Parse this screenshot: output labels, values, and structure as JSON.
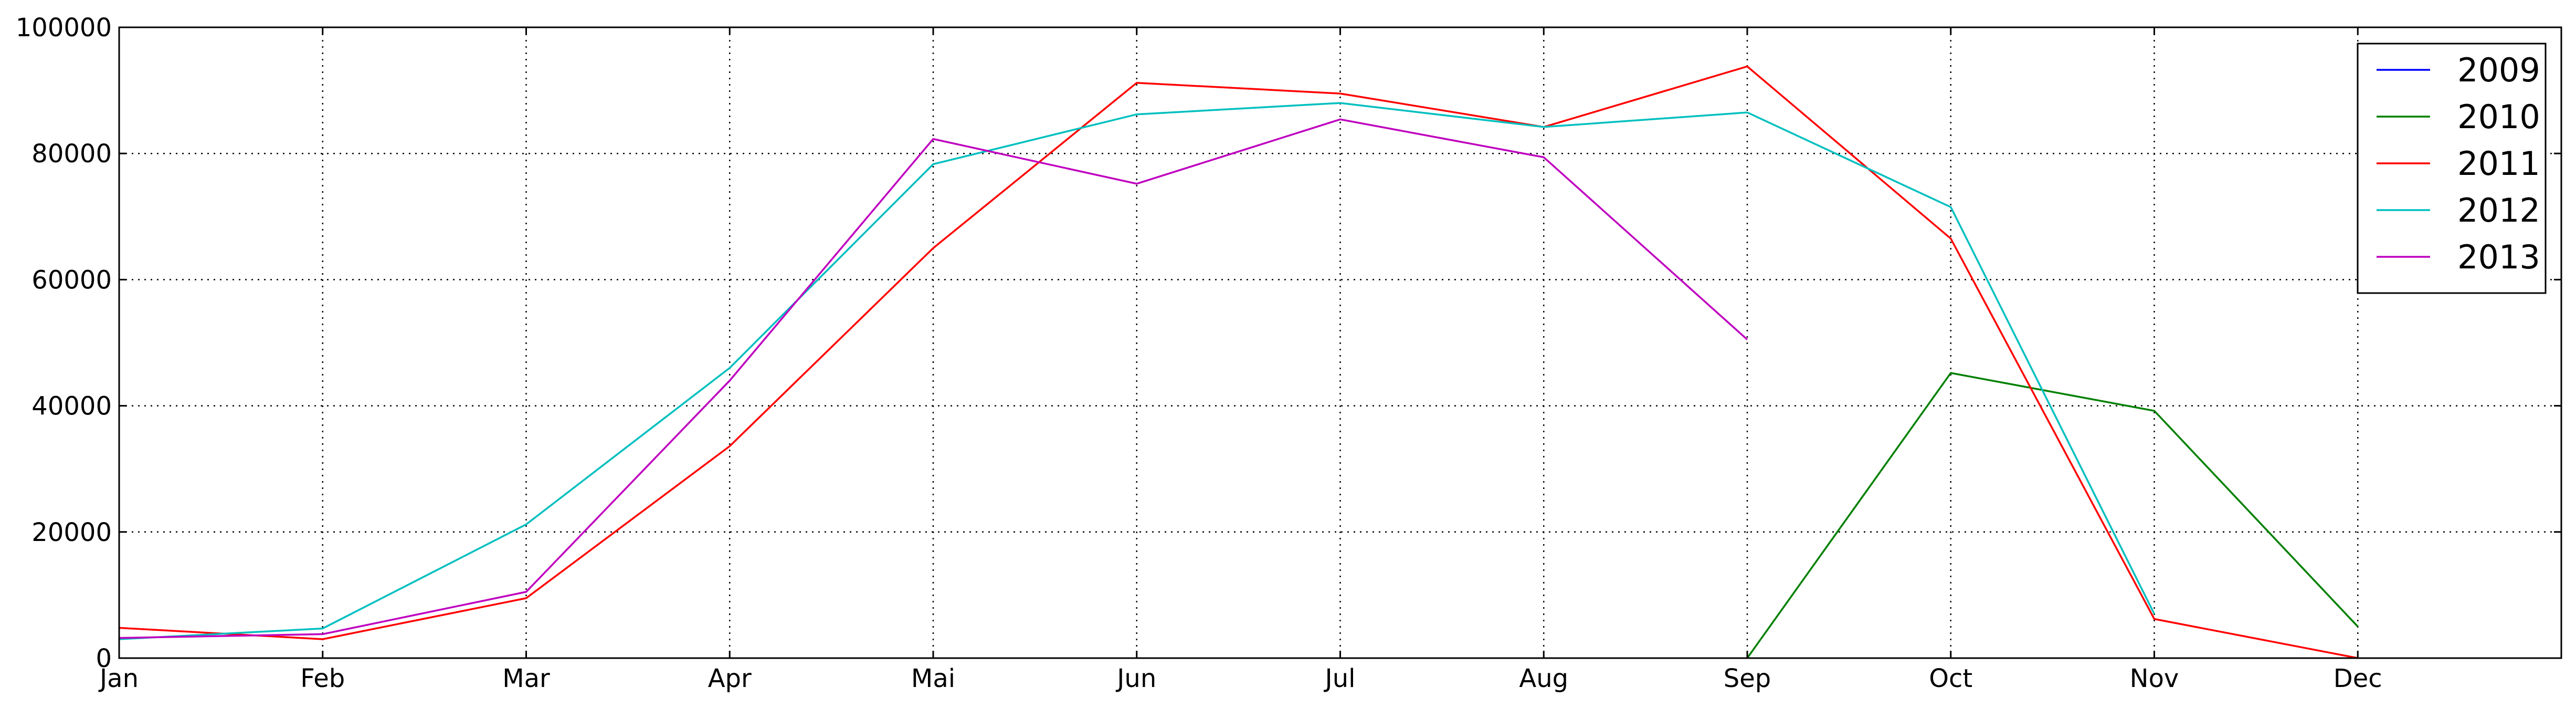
{
  "chart_data": {
    "type": "line",
    "title": "",
    "xlabel": "",
    "ylabel": "",
    "categories": [
      "Jan",
      "Feb",
      "Mar",
      "Apr",
      "Mai",
      "Jun",
      "Jul",
      "Aug",
      "Sep",
      "Oct",
      "Nov",
      "Dec"
    ],
    "xlim": [
      0,
      12
    ],
    "ylim": [
      0,
      100000
    ],
    "yticks": [
      0,
      20000,
      40000,
      60000,
      80000,
      100000
    ],
    "grid": true,
    "legend_position": "top-right",
    "series": [
      {
        "name": "2009",
        "color": "#0000ff",
        "values": [
          null,
          null,
          null,
          null,
          null,
          null,
          null,
          null,
          null,
          null,
          null,
          null
        ]
      },
      {
        "name": "2010",
        "color": "#008000",
        "values": [
          null,
          null,
          null,
          null,
          null,
          null,
          null,
          null,
          0,
          45200,
          39200,
          5000
        ]
      },
      {
        "name": "2011",
        "color": "#ff0000",
        "values": [
          4800,
          3000,
          9500,
          33600,
          65000,
          91200,
          89500,
          84200,
          93800,
          66500,
          6200,
          0
        ]
      },
      {
        "name": "2012",
        "color": "#00bfbf",
        "values": [
          3000,
          4700,
          21200,
          46000,
          78300,
          86200,
          88000,
          84200,
          86500,
          71500,
          7000,
          null
        ]
      },
      {
        "name": "2013",
        "color": "#bf00bf",
        "values": [
          3200,
          3800,
          10500,
          44000,
          82300,
          75200,
          85400,
          79400,
          50500,
          null,
          null,
          null
        ]
      }
    ]
  }
}
